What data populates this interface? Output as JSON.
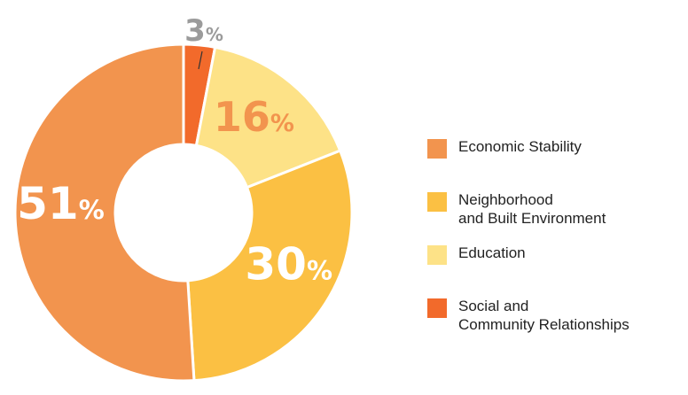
{
  "chart_data": {
    "type": "pie",
    "donut": true,
    "categories": [
      "Economic Stability",
      "Neighborhood\nand Built Environment",
      "Education",
      "Social and\nCommunity Relationships"
    ],
    "values": [
      51,
      30,
      16,
      3
    ],
    "value_labels": [
      "51",
      "30",
      "16",
      "3"
    ],
    "unit_symbol": "%",
    "colors": [
      "#F2944E",
      "#FBC043",
      "#FDE287",
      "#F26A2B"
    ],
    "label_colors": [
      "#ffffff",
      "#ffffff",
      "#F2944E",
      "#9b9b9b"
    ],
    "legend_position": "right"
  }
}
